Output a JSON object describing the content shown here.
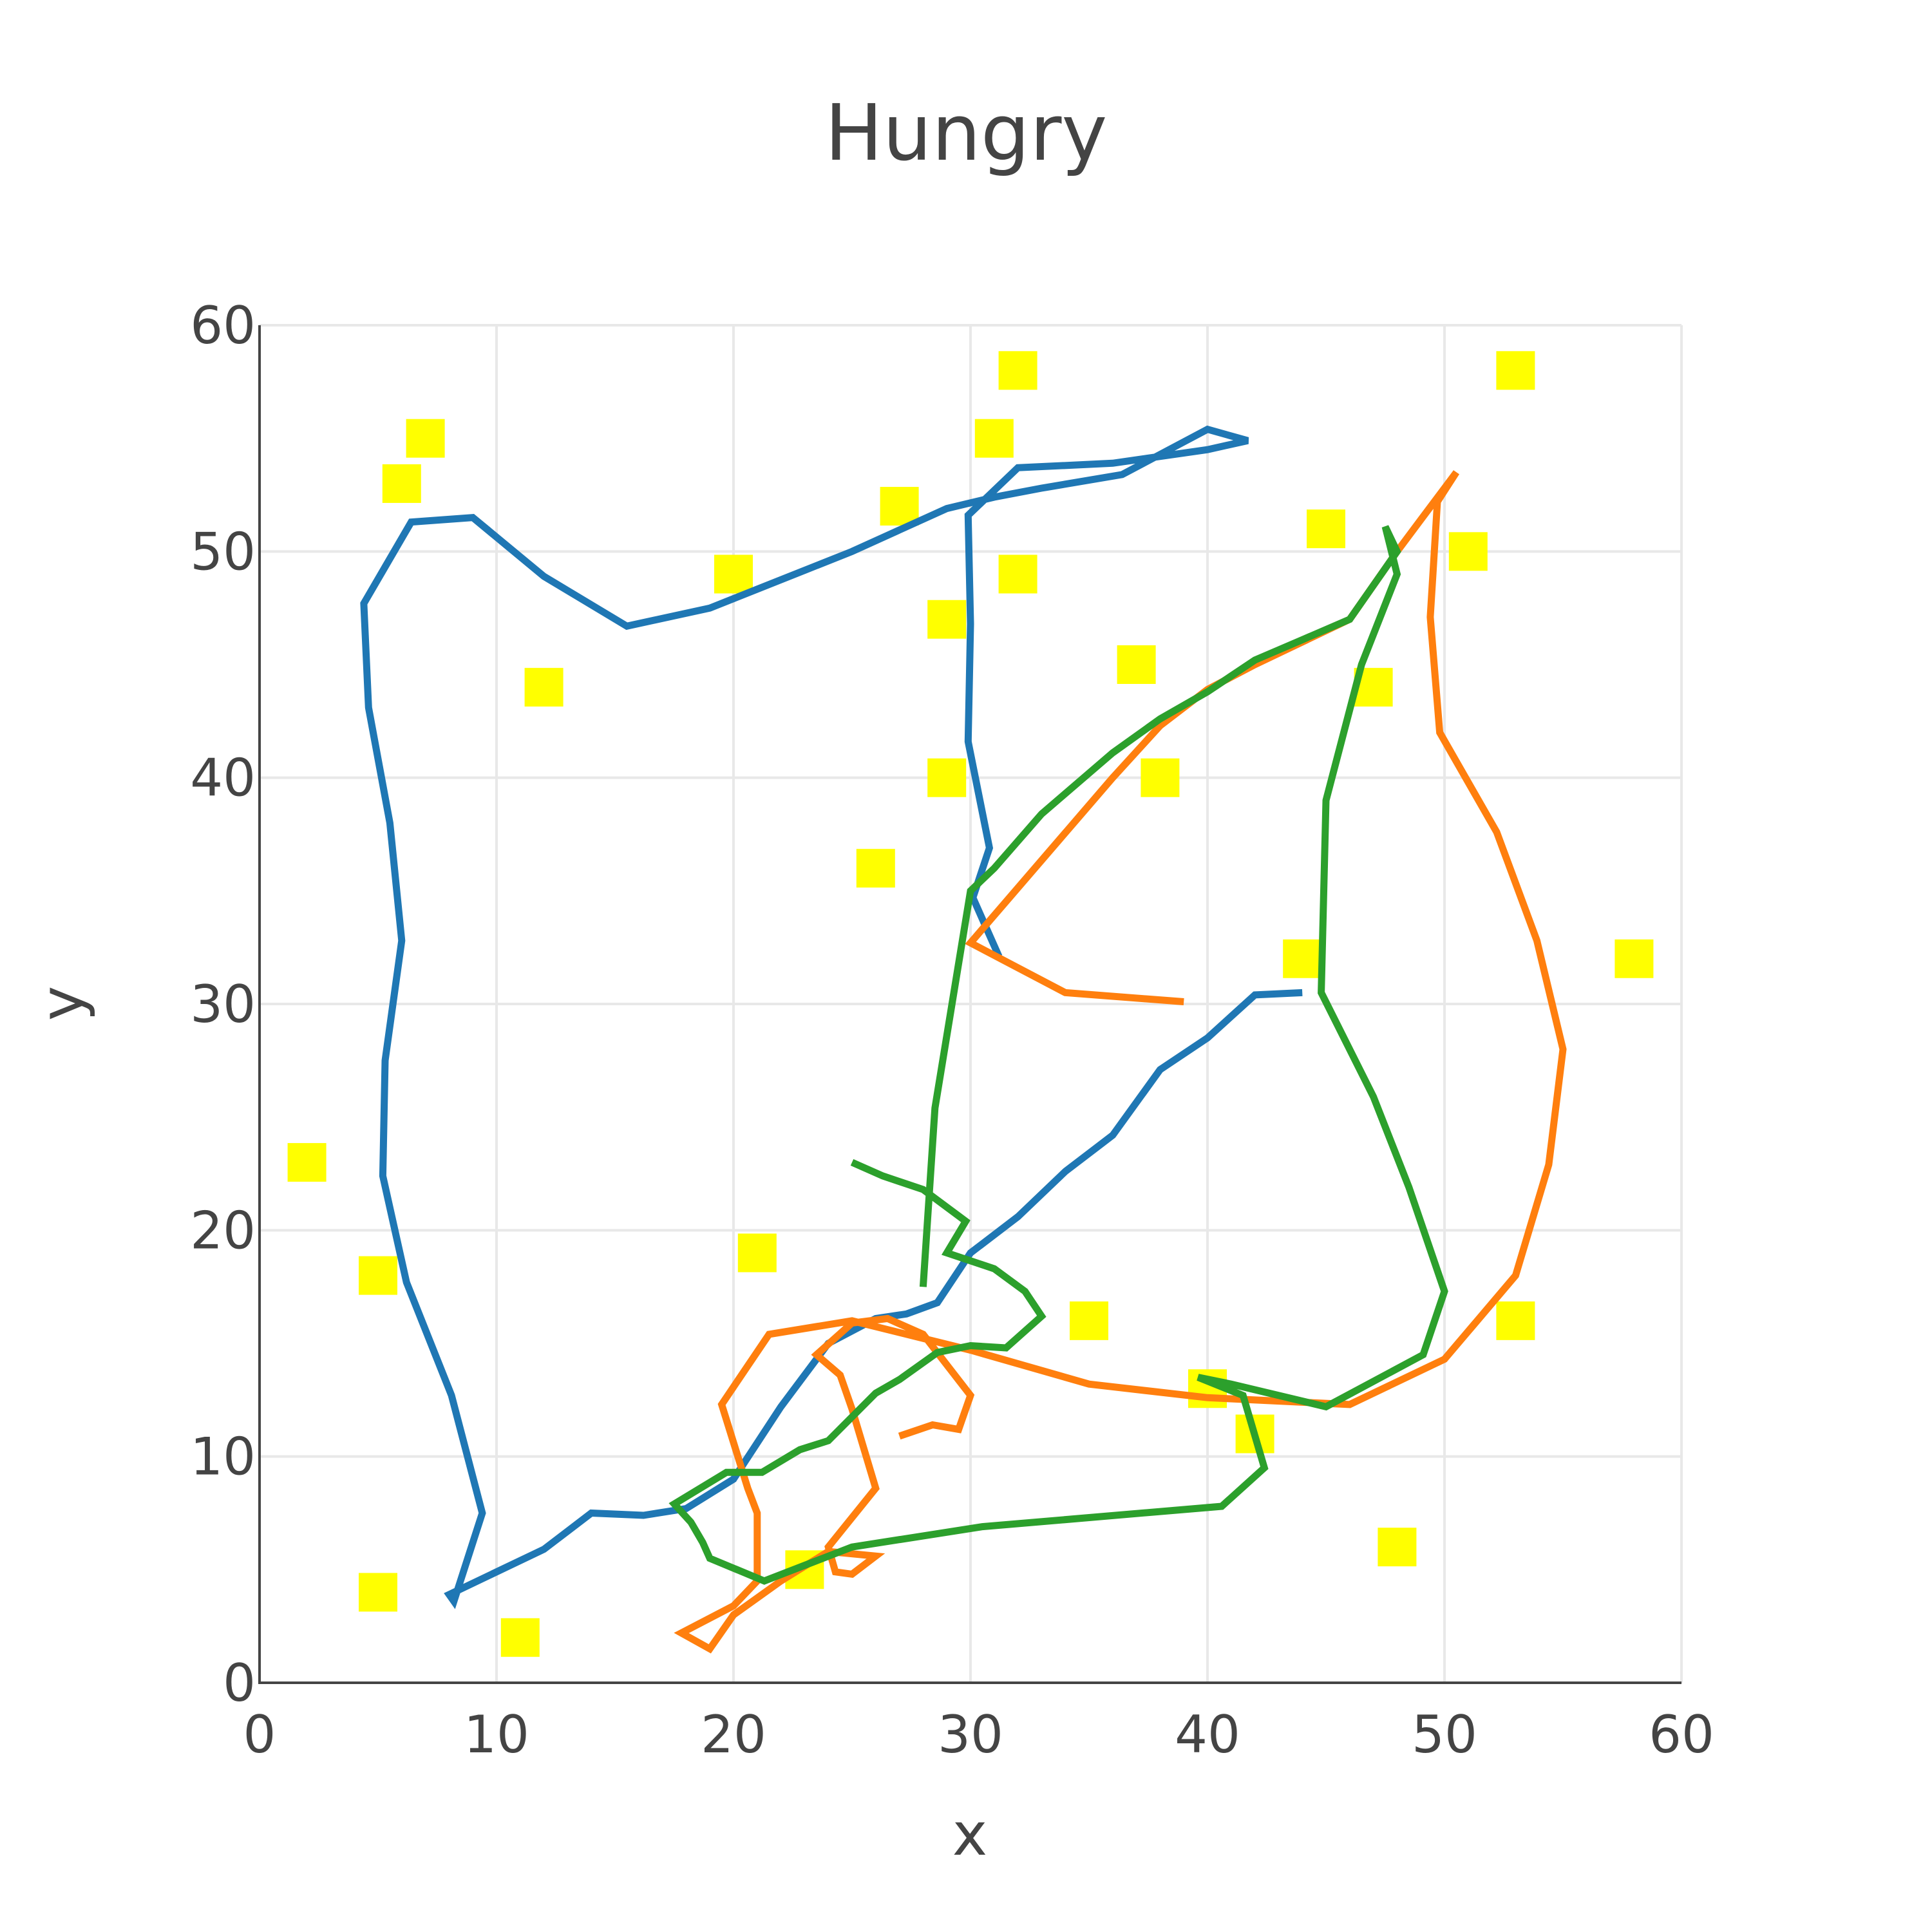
{
  "chart_data": {
    "type": "scatter",
    "title": "Hungry",
    "xlabel": "x",
    "ylabel": "y",
    "xlim": [
      0,
      60
    ],
    "ylim": [
      0,
      60
    ],
    "xticks": [
      0,
      10,
      20,
      30,
      40,
      50,
      60
    ],
    "yticks": [
      0,
      10,
      20,
      30,
      40,
      50,
      60
    ],
    "grid": true,
    "legend": "none",
    "food": {
      "color": "#ffff00",
      "marker": "square",
      "points": [
        [
          7,
          55
        ],
        [
          6,
          53
        ],
        [
          12,
          44
        ],
        [
          2,
          23
        ],
        [
          5,
          18
        ],
        [
          5,
          4
        ],
        [
          11,
          2
        ],
        [
          20,
          49
        ],
        [
          21,
          19
        ],
        [
          23,
          5
        ],
        [
          26,
          36
        ],
        [
          27,
          52
        ],
        [
          29,
          47
        ],
        [
          29,
          40
        ],
        [
          31,
          55
        ],
        [
          32,
          58
        ],
        [
          32,
          49
        ],
        [
          35,
          16
        ],
        [
          37,
          45
        ],
        [
          38,
          40
        ],
        [
          40,
          13
        ],
        [
          42,
          11
        ],
        [
          44,
          32
        ],
        [
          45,
          51
        ],
        [
          47,
          44
        ],
        [
          48,
          6
        ],
        [
          51,
          50
        ],
        [
          53,
          58
        ],
        [
          53,
          16
        ],
        [
          58,
          32
        ]
      ]
    },
    "series": [
      {
        "color": "#1f77b4",
        "points": [
          [
            31.2,
            32.1
          ],
          [
            30.1,
            34.7
          ],
          [
            30.8,
            36.9
          ],
          [
            29.9,
            41.6
          ],
          [
            30.0,
            46.8
          ],
          [
            29.9,
            51.6
          ],
          [
            32.0,
            53.7
          ],
          [
            36.0,
            53.9
          ],
          [
            40.0,
            54.5
          ],
          [
            41.7,
            54.9
          ],
          [
            40.0,
            55.4
          ],
          [
            36.4,
            53.4
          ],
          [
            33.0,
            52.8
          ],
          [
            31.0,
            52.4
          ],
          [
            29.0,
            51.9
          ],
          [
            25.0,
            50.0
          ],
          [
            19.0,
            47.5
          ],
          [
            15.5,
            46.7
          ],
          [
            12.0,
            48.9
          ],
          [
            9.0,
            51.5
          ],
          [
            6.4,
            51.3
          ],
          [
            4.4,
            47.7
          ],
          [
            4.6,
            43.1
          ],
          [
            5.5,
            38.0
          ],
          [
            6.0,
            32.8
          ],
          [
            5.3,
            27.5
          ],
          [
            5.2,
            22.4
          ],
          [
            6.2,
            17.7
          ],
          [
            8.1,
            12.7
          ],
          [
            9.4,
            7.5
          ],
          [
            8.2,
            3.6
          ],
          [
            8.0,
            3.9
          ],
          [
            12.0,
            5.9
          ],
          [
            14.0,
            7.5
          ],
          [
            16.2,
            7.4
          ],
          [
            18.0,
            7.7
          ],
          [
            20.0,
            9.0
          ],
          [
            22.0,
            12.2
          ],
          [
            24.0,
            15.0
          ],
          [
            26.0,
            16.1
          ],
          [
            27.3,
            16.3
          ],
          [
            28.6,
            16.8
          ],
          [
            30.0,
            19.0
          ],
          [
            32.0,
            20.6
          ],
          [
            34.0,
            22.6
          ],
          [
            36.0,
            24.2
          ],
          [
            38.0,
            27.1
          ],
          [
            40.0,
            28.5
          ],
          [
            42.0,
            30.4
          ],
          [
            44.0,
            30.5
          ]
        ]
      },
      {
        "color": "#ff7f0e",
        "points": [
          [
            39.0,
            30.1
          ],
          [
            34.0,
            30.5
          ],
          [
            30.0,
            32.7
          ],
          [
            36.0,
            40.0
          ],
          [
            38.0,
            42.3
          ],
          [
            40.0,
            43.9
          ],
          [
            42.0,
            45.0
          ],
          [
            44.0,
            46.0
          ],
          [
            46.0,
            47.0
          ],
          [
            48.0,
            50.0
          ],
          [
            49.0,
            51.4
          ],
          [
            50.5,
            53.5
          ],
          [
            49.7,
            52.2
          ],
          [
            49.4,
            47.1
          ],
          [
            49.8,
            42.0
          ],
          [
            52.2,
            37.6
          ],
          [
            53.9,
            32.8
          ],
          [
            55.0,
            28.0
          ],
          [
            54.4,
            22.9
          ],
          [
            53.0,
            18.0
          ],
          [
            50.0,
            14.3
          ],
          [
            46.0,
            12.3
          ],
          [
            40.0,
            12.6
          ],
          [
            35.0,
            13.2
          ],
          [
            30.0,
            14.7
          ],
          [
            25.0,
            16.0
          ],
          [
            21.5,
            15.4
          ],
          [
            19.5,
            12.3
          ],
          [
            20.6,
            8.6
          ],
          [
            21.0,
            7.5
          ],
          [
            21.0,
            4.5
          ],
          [
            20.0,
            3.4
          ],
          [
            17.8,
            2.2
          ],
          [
            19.0,
            1.5
          ],
          [
            20.0,
            3.0
          ],
          [
            22.0,
            4.5
          ],
          [
            24.0,
            5.8
          ],
          [
            26.0,
            5.6
          ],
          [
            25.0,
            4.8
          ],
          [
            24.3,
            4.9
          ],
          [
            24.0,
            6.0
          ],
          [
            26.0,
            8.6
          ],
          [
            25.0,
            12.1
          ],
          [
            24.5,
            13.6
          ],
          [
            23.5,
            14.5
          ],
          [
            25.0,
            15.9
          ],
          [
            26.5,
            16.1
          ],
          [
            28.0,
            15.4
          ],
          [
            30.0,
            12.7
          ],
          [
            29.5,
            11.2
          ],
          [
            28.4,
            11.4
          ],
          [
            27.0,
            10.9
          ]
        ]
      },
      {
        "color": "#2ca02c",
        "points": [
          [
            28.0,
            17.5
          ],
          [
            28.5,
            25.4
          ],
          [
            30.0,
            35.0
          ],
          [
            31.0,
            36.0
          ],
          [
            33.0,
            38.4
          ],
          [
            36.0,
            41.1
          ],
          [
            38.0,
            42.6
          ],
          [
            40.0,
            43.8
          ],
          [
            42.0,
            45.2
          ],
          [
            44.0,
            46.1
          ],
          [
            46.0,
            47.0
          ],
          [
            48.0,
            50.0
          ],
          [
            47.5,
            51.1
          ],
          [
            48.0,
            49.0
          ],
          [
            46.5,
            45.0
          ],
          [
            45.0,
            39.0
          ],
          [
            44.8,
            30.5
          ],
          [
            47.0,
            25.9
          ],
          [
            48.5,
            21.9
          ],
          [
            50.0,
            17.3
          ],
          [
            49.1,
            14.5
          ],
          [
            45.0,
            12.2
          ],
          [
            41.0,
            13.2
          ],
          [
            39.6,
            13.5
          ],
          [
            41.5,
            12.7
          ],
          [
            42.4,
            9.5
          ],
          [
            40.6,
            7.8
          ],
          [
            30.5,
            6.9
          ],
          [
            25.0,
            6.0
          ],
          [
            21.3,
            4.5
          ],
          [
            19.0,
            5.5
          ],
          [
            18.7,
            6.2
          ],
          [
            18.2,
            7.1
          ],
          [
            17.5,
            7.9
          ],
          [
            19.7,
            9.3
          ],
          [
            21.2,
            9.3
          ],
          [
            22.8,
            10.3
          ],
          [
            24.0,
            10.7
          ],
          [
            26.0,
            12.8
          ],
          [
            27.0,
            13.4
          ],
          [
            28.6,
            14.6
          ],
          [
            30.0,
            14.9
          ],
          [
            31.5,
            14.8
          ],
          [
            33.0,
            16.2
          ],
          [
            32.3,
            17.3
          ],
          [
            31.0,
            18.3
          ],
          [
            29.0,
            19.0
          ],
          [
            29.8,
            20.4
          ],
          [
            28.0,
            21.8
          ],
          [
            26.3,
            22.4
          ],
          [
            25.0,
            23.0
          ]
        ]
      }
    ]
  }
}
